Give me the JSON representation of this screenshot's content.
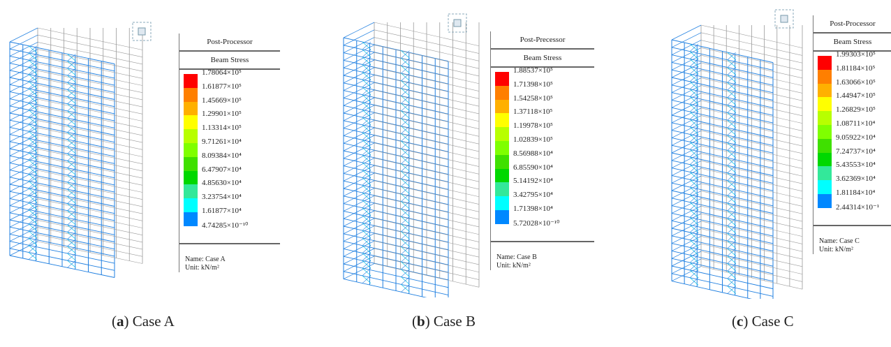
{
  "panels": [
    {
      "legend": {
        "title": "Post-Processor",
        "subtitle": "Beam Stress",
        "values": [
          "1.78064×10⁵",
          "1.61877×10⁵",
          "1.45669×10⁵",
          "1.29901×10⁵",
          "1.13314×10⁵",
          "9.71261×10⁴",
          "8.09384×10⁴",
          "6.47907×10⁴",
          "4.85630×10⁴",
          "3.23754×10⁴",
          "1.61877×10⁴",
          "4.74285×10⁻¹⁰"
        ],
        "name": "Name: Case A",
        "unit": "Unit: kN/m²"
      },
      "caption_letter": "a",
      "caption_open": "(",
      "caption_close": ") Case A"
    },
    {
      "legend": {
        "title": "Post-Precessor",
        "subtitle": "Beam Stress",
        "values": [
          "1.88537×10⁵",
          "1.71398×10⁵",
          "1.54258×10⁵",
          "1.37118×10⁵",
          "1.19978×10⁵",
          "1.02839×10⁵",
          "8.56988×10⁴",
          "6.85590×10⁴",
          "5.14192×10⁴",
          "3.42795×10⁴",
          "1.71398×10⁴",
          "5.72028×10⁻¹⁰"
        ],
        "name": "Name: Case B",
        "unit": "Unit: kN/m²"
      },
      "caption_letter": "b",
      "caption_open": "(",
      "caption_close": ") Case B"
    },
    {
      "legend": {
        "title": "Post-Processor",
        "subtitle": "Beam Stress",
        "values": [
          "1.99303×10⁵",
          "1.81184×10⁵",
          "1.63066×10⁵",
          "1.44947×10⁵",
          "1.26829×10⁵",
          "1.08711×10⁴",
          "9.05922×10⁴",
          "7.24737×10⁴",
          "5.43553×10⁴",
          "3.62369×10⁴",
          "1.81184×10⁴",
          "2.44314×10⁻¹"
        ],
        "name": "Name: Case C",
        "unit": "Unit: kN/m²"
      },
      "caption_letter": "c",
      "caption_open": "(",
      "caption_close": ") Case C"
    }
  ],
  "colors": {
    "scale": [
      "#ff0000",
      "#ff7f00",
      "#ffb000",
      "#ffff00",
      "#b8ff00",
      "#7fff00",
      "#3fe000",
      "#00d800",
      "#33e89a",
      "#00ffff",
      "#0088ff"
    ],
    "frame_grey": "#9a9a9a",
    "frame_blue": "#1f7fe0",
    "frame_cyan": "#22c8e8"
  }
}
